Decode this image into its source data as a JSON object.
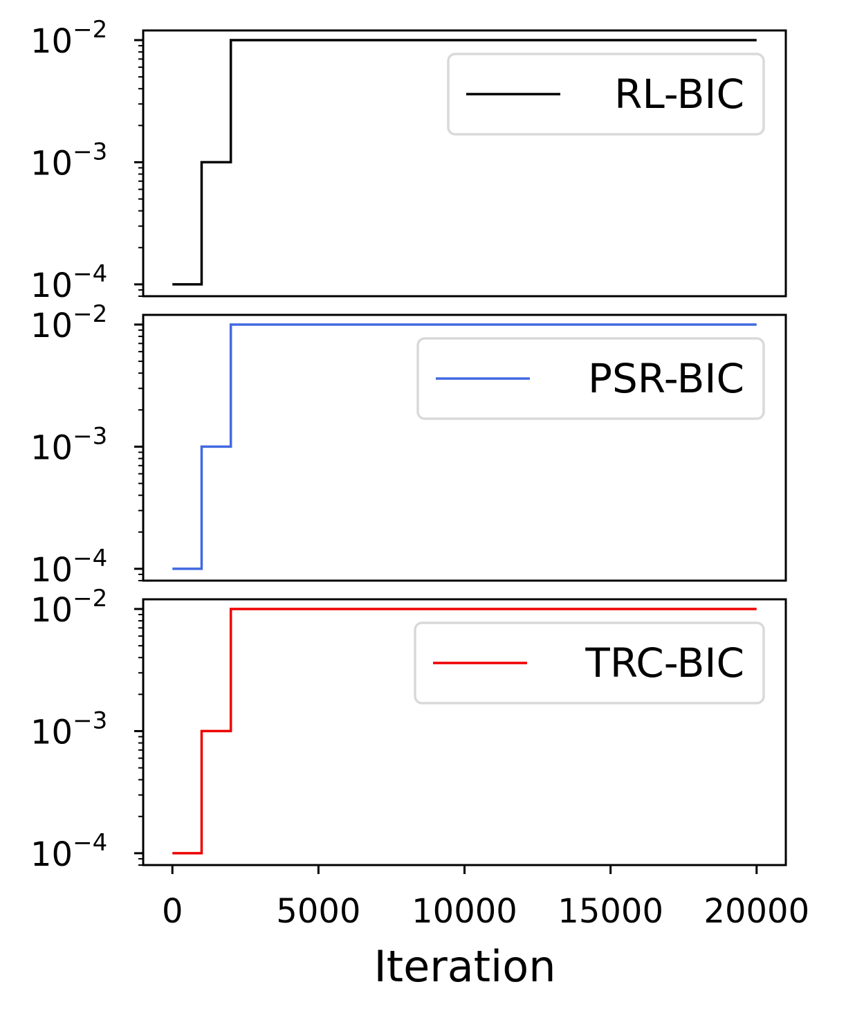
{
  "figure": {
    "xlabel": "Iteration"
  },
  "chart_data": [
    {
      "type": "line",
      "drawstyle": "steps-post",
      "y_scale": "log",
      "ylim": [
        8e-05,
        0.012
      ],
      "xlim": [
        -1000,
        21000
      ],
      "yticks": [
        0.0001,
        0.001,
        0.01
      ],
      "ytick_labels": [
        {
          "base": "10",
          "exp": "−4"
        },
        {
          "base": "10",
          "exp": "−3"
        },
        {
          "base": "10",
          "exp": "−2"
        }
      ],
      "show_xtick_labels": false,
      "grid": false,
      "legend_position": "upper right",
      "series": [
        {
          "name": "RL-BIC",
          "color": "#000000",
          "x": [
            0,
            1000,
            2000,
            20000
          ],
          "y": [
            0.0001,
            0.001,
            0.01,
            0.01
          ]
        }
      ]
    },
    {
      "type": "line",
      "drawstyle": "steps-post",
      "y_scale": "log",
      "ylim": [
        8e-05,
        0.012
      ],
      "xlim": [
        -1000,
        21000
      ],
      "yticks": [
        0.0001,
        0.001,
        0.01
      ],
      "ytick_labels": [
        {
          "base": "10",
          "exp": "−4"
        },
        {
          "base": "10",
          "exp": "−3"
        },
        {
          "base": "10",
          "exp": "−2"
        }
      ],
      "show_xtick_labels": false,
      "grid": false,
      "legend_position": "upper right",
      "series": [
        {
          "name": "PSR-BIC",
          "color": "#4169e1",
          "x": [
            0,
            1000,
            2000,
            20000
          ],
          "y": [
            0.0001,
            0.001,
            0.01,
            0.01
          ]
        }
      ]
    },
    {
      "type": "line",
      "drawstyle": "steps-post",
      "y_scale": "log",
      "ylim": [
        8e-05,
        0.012
      ],
      "xlim": [
        -1000,
        21000
      ],
      "yticks": [
        0.0001,
        0.001,
        0.01
      ],
      "ytick_labels": [
        {
          "base": "10",
          "exp": "−4"
        },
        {
          "base": "10",
          "exp": "−3"
        },
        {
          "base": "10",
          "exp": "−2"
        }
      ],
      "xticks": [
        0,
        5000,
        10000,
        15000,
        20000
      ],
      "xtick_labels": [
        "0",
        "5000",
        "10000",
        "15000",
        "20000"
      ],
      "show_xtick_labels": true,
      "grid": false,
      "legend_position": "upper right",
      "series": [
        {
          "name": "TRC-BIC",
          "color": "#ee0000",
          "x": [
            0,
            1000,
            2000,
            20000
          ],
          "y": [
            0.0001,
            0.001,
            0.01,
            0.01
          ]
        }
      ]
    }
  ]
}
